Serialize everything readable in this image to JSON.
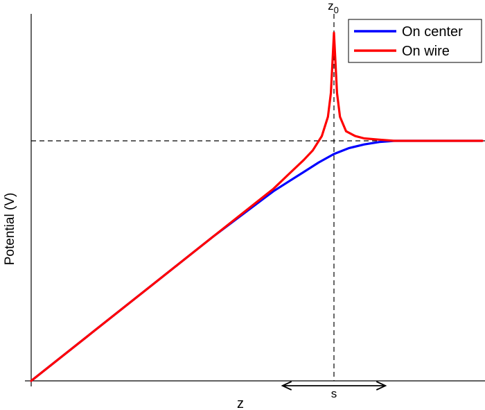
{
  "chart_data": {
    "type": "line",
    "xlabel": "z",
    "ylabel": "Potential (V)",
    "x_range": [
      0,
      1.49
    ],
    "y_range": [
      0,
      1.58
    ],
    "grid": false,
    "legend": {
      "placement": "top-right",
      "entries": [
        {
          "label": "On center",
          "color": "#0000ff"
        },
        {
          "label": "On wire",
          "color": "#ff0000"
        }
      ]
    },
    "annotations": {
      "z0_label": "z",
      "z0_subscript": "0",
      "z0": 1.0,
      "plateau_level": 1.0,
      "s_label": "s",
      "s_arrow_from": 0.83,
      "s_arrow_to": 1.17
    },
    "series": [
      {
        "name": "On center",
        "color": "#0000ff",
        "x": [
          0,
          0.2,
          0.4,
          0.6,
          0.8,
          0.85,
          0.9,
          0.95,
          1.0,
          1.05,
          1.1,
          1.15,
          1.2,
          1.25,
          1.3,
          1.35,
          1.4,
          1.45,
          1.49
        ],
        "y": [
          0,
          0.2,
          0.4,
          0.6,
          0.79,
          0.83,
          0.87,
          0.91,
          0.945,
          0.97,
          0.985,
          0.995,
          1.0,
          1.0,
          1.0,
          1.0,
          1.0,
          1.0,
          1.0
        ]
      },
      {
        "name": "On wire",
        "color": "#ff0000",
        "x": [
          0,
          0.2,
          0.4,
          0.6,
          0.8,
          0.85,
          0.9,
          0.93,
          0.96,
          0.98,
          0.99,
          1.0,
          1.01,
          1.02,
          1.04,
          1.07,
          1.1,
          1.15,
          1.2,
          1.25,
          1.3,
          1.4,
          1.49
        ],
        "y": [
          0,
          0.2,
          0.4,
          0.6,
          0.8,
          0.86,
          0.92,
          0.96,
          1.02,
          1.1,
          1.2,
          1.45,
          1.2,
          1.1,
          1.04,
          1.02,
          1.01,
          1.005,
          1.0,
          1.0,
          1.0,
          1.0,
          1.0
        ]
      }
    ]
  }
}
